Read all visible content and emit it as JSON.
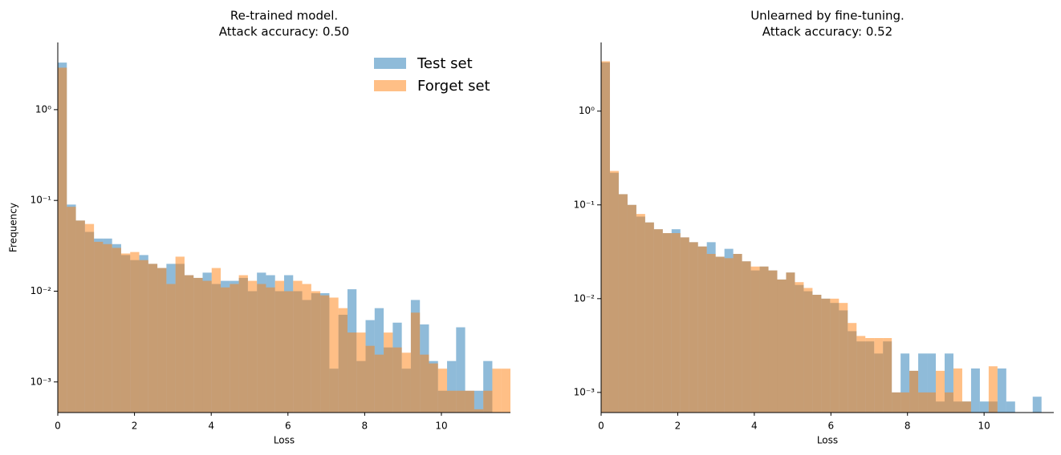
{
  "chart_data": [
    {
      "type": "histogram",
      "title": [
        "Re-trained model.",
        "Attack accuracy: 0.50"
      ],
      "x_label": "Loss",
      "y_label": "Frequency",
      "log_y": true,
      "legend": "upper right",
      "alpha": 0.5,
      "xlim": [
        0,
        11.8
      ],
      "xticks": [
        0,
        2,
        4,
        6,
        8,
        10
      ],
      "ylim": [
        0.00046,
        5.5
      ],
      "yticks": [
        {
          "value": 0.001,
          "label": "10⁻³"
        },
        {
          "value": 0.01,
          "label": "10⁻²"
        },
        {
          "value": 0.1,
          "label": "10⁻¹"
        },
        {
          "value": 1,
          "label": "10⁰"
        }
      ],
      "bins": [
        0,
        0.236,
        0.472,
        0.708,
        0.944,
        1.18,
        1.416,
        1.652,
        1.888,
        2.124,
        2.36,
        2.596,
        2.832,
        3.068,
        3.304,
        3.54,
        3.776,
        4.012,
        4.248,
        4.484,
        4.72,
        4.956,
        5.192,
        5.428,
        5.664,
        5.9,
        6.136,
        6.372,
        6.608,
        6.844,
        7.08,
        7.316,
        7.552,
        7.788,
        8.024,
        8.26,
        8.496,
        8.732,
        8.968,
        9.204,
        9.44,
        9.676,
        9.912,
        10.148,
        10.384,
        10.62,
        10.856,
        11.092,
        11.328,
        11.564,
        11.8
      ],
      "series": [
        {
          "name": "Test set",
          "color": "#1f77b4",
          "values": [
            3.3,
            0.09,
            0.06,
            0.045,
            0.038,
            0.038,
            0.033,
            0.025,
            0.022,
            0.025,
            0.02,
            0.018,
            0.02,
            0.02,
            0.015,
            0.014,
            0.016,
            0.012,
            0.013,
            0.013,
            0.014,
            0.01,
            0.016,
            0.015,
            0.01,
            0.015,
            0.01,
            0.008,
            0.0095,
            0.0095,
            0.0014,
            0.0055,
            0.0105,
            0.0017,
            0.0048,
            0.0065,
            0.0024,
            0.0045,
            0.0014,
            0.008,
            0.0043,
            0.0017,
            0.0008,
            0.0017,
            0.004,
            0.0008,
            0.0008,
            0.0017,
            0,
            0
          ]
        },
        {
          "name": "Forget set",
          "color": "#ff7f0e",
          "values": [
            2.9,
            0.085,
            0.06,
            0.055,
            0.035,
            0.033,
            0.03,
            0.026,
            0.027,
            0.022,
            0.02,
            0.018,
            0.012,
            0.024,
            0.015,
            0.014,
            0.013,
            0.018,
            0.011,
            0.012,
            0.015,
            0.013,
            0.012,
            0.011,
            0.013,
            0.01,
            0.013,
            0.012,
            0.01,
            0.009,
            0.0085,
            0.0065,
            0.0035,
            0.0035,
            0.0025,
            0.002,
            0.0035,
            0.0024,
            0.0021,
            0.0058,
            0.002,
            0.0016,
            0.0014,
            0.0008,
            0.0008,
            0.0008,
            0.0005,
            0.0008,
            0.0014,
            0.0014
          ]
        }
      ]
    },
    {
      "type": "histogram",
      "title": [
        "Unlearned by fine-tuning.",
        "Attack accuracy: 0.52"
      ],
      "x_label": "Loss",
      "log_y": true,
      "alpha": 0.5,
      "xlim": [
        0,
        11.82
      ],
      "xticks": [
        0,
        2,
        4,
        6,
        8,
        10
      ],
      "ylim": [
        0.00061,
        5.4
      ],
      "yticks": [
        {
          "value": 0.001,
          "label": "10⁻³"
        },
        {
          "value": 0.01,
          "label": "10⁻²"
        },
        {
          "value": 0.1,
          "label": "10⁻¹"
        },
        {
          "value": 1,
          "label": "10⁰"
        }
      ],
      "bins": [
        0,
        0.23,
        0.46,
        0.69,
        0.92,
        1.15,
        1.38,
        1.61,
        1.84,
        2.07,
        2.3,
        2.53,
        2.76,
        2.99,
        3.22,
        3.45,
        3.68,
        3.91,
        4.14,
        4.37,
        4.6,
        4.83,
        5.06,
        5.29,
        5.52,
        5.75,
        5.98,
        6.21,
        6.44,
        6.67,
        6.9,
        7.13,
        7.36,
        7.59,
        7.82,
        8.05,
        8.28,
        8.51,
        8.74,
        8.97,
        9.2,
        9.43,
        9.66,
        9.89,
        10.12,
        10.35,
        10.58,
        10.81,
        11.04,
        11.27,
        11.5
      ],
      "series": [
        {
          "name": "Test set",
          "color": "#1f77b4",
          "values": [
            3.3,
            0.22,
            0.13,
            0.1,
            0.075,
            0.065,
            0.055,
            0.05,
            0.055,
            0.045,
            0.04,
            0.036,
            0.04,
            0.028,
            0.034,
            0.03,
            0.025,
            0.02,
            0.022,
            0.02,
            0.016,
            0.019,
            0.014,
            0.012,
            0.011,
            0.01,
            0.009,
            0.0075,
            0.0045,
            0.0035,
            0.0035,
            0.0026,
            0.0035,
            0.001,
            0.0026,
            0.0017,
            0.0026,
            0.0026,
            0.0008,
            0.0026,
            0.0008,
            0.0008,
            0.0018,
            0.0008,
            0.0008,
            0.0018,
            0.0008,
            0,
            0,
            0.0009
          ]
        },
        {
          "name": "Forget set",
          "color": "#ff7f0e",
          "values": [
            3.4,
            0.23,
            0.13,
            0.1,
            0.08,
            0.065,
            0.055,
            0.05,
            0.05,
            0.045,
            0.04,
            0.036,
            0.03,
            0.028,
            0.027,
            0.03,
            0.025,
            0.022,
            0.022,
            0.02,
            0.016,
            0.019,
            0.015,
            0.013,
            0.011,
            0.01,
            0.01,
            0.009,
            0.0055,
            0.004,
            0.0038,
            0.0038,
            0.0038,
            0.001,
            0.001,
            0.0017,
            0.001,
            0.001,
            0.0017,
            0.001,
            0.0018,
            0.0008,
            0,
            0,
            0.0019,
            0,
            0,
            0,
            0,
            0
          ]
        }
      ]
    }
  ]
}
